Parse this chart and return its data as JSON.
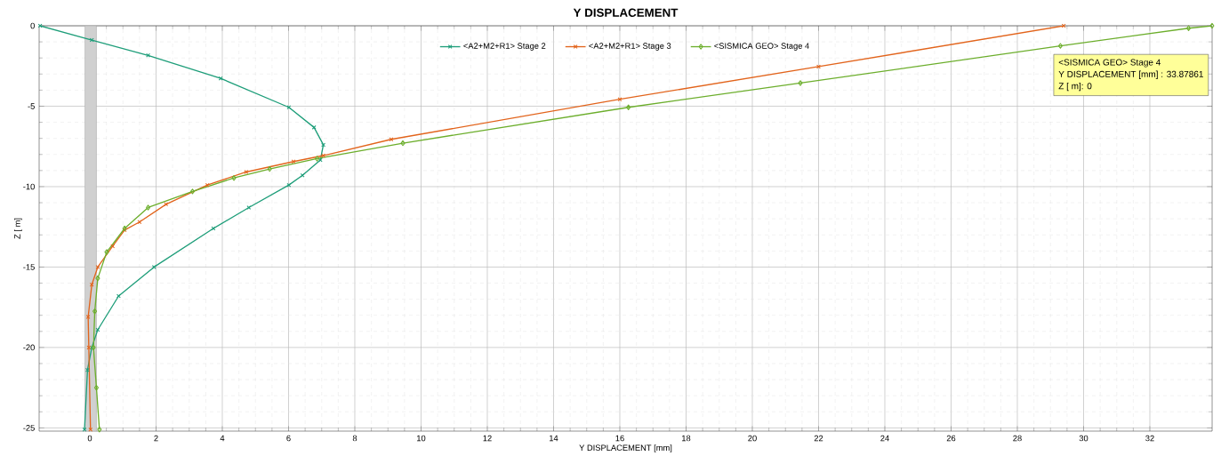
{
  "chart_data": {
    "type": "line",
    "title": "Y DISPLACEMENT",
    "xlabel": "Y DISPLACEMENT [mm]",
    "ylabel": "Z [ m]",
    "xlim": [
      -1.53,
      33.88
    ],
    "ylim": [
      -25.2,
      0
    ],
    "xticks": [
      0,
      2,
      4,
      6,
      8,
      10,
      12,
      14,
      16,
      18,
      20,
      22,
      24,
      26,
      28,
      30,
      32
    ],
    "yticks": [
      -25,
      -20,
      -15,
      -10,
      -5,
      0
    ],
    "grid": true,
    "legend": "top",
    "line_style": "solid",
    "bands": [
      {
        "axis": "x",
        "from": -0.15,
        "to": 0.2,
        "color": "#d0d0d0"
      }
    ],
    "annotations": [
      "<SISMICA GEO> Stage 4",
      "Y DISPLACEMENT [mm] : 33.87861",
      "Z [ m]: 0"
    ],
    "series": [
      {
        "name": "<A2+M2+R1> Stage 2",
        "color": "#1f9e7a",
        "marker": "cross",
        "x": [
          -1.5,
          0.06,
          1.76,
          3.95,
          6.01,
          6.77,
          7.05,
          6.96,
          6.42,
          6.01,
          4.8,
          3.73,
          1.94,
          0.87,
          0.24,
          0.06,
          -0.07,
          -0.16
        ],
        "values": [
          0,
          -0.89,
          -1.84,
          -3.27,
          -5.07,
          -6.32,
          -7.4,
          -8.35,
          -9.3,
          -9.9,
          -11.3,
          -12.6,
          -15,
          -16.8,
          -18.9,
          -20,
          -21.4,
          -25.1
        ]
      },
      {
        "name": "<A2+M2+R1> Stage 3",
        "color": "#e2641c",
        "marker": "cross",
        "x": [
          29.4,
          22,
          16,
          9.1,
          7.05,
          6.15,
          4.72,
          3.55,
          2.3,
          1.5,
          1.05,
          0.69,
          0.24,
          0.06,
          -0.05,
          -0.03,
          0.02
        ],
        "values": [
          0,
          -2.54,
          -4.57,
          -7.06,
          -8.07,
          -8.44,
          -9.09,
          -9.9,
          -11.1,
          -12.2,
          -12.7,
          -13.7,
          -15,
          -16.1,
          -18.1,
          -20,
          -25.1
        ]
      },
      {
        "name": "<SISMICA GEO> Stage 4",
        "color": "#6cae2c",
        "marker": "diamond",
        "x": [
          33.87861,
          33.17,
          29.3,
          21.45,
          16.26,
          9.45,
          6.86,
          5.43,
          4.35,
          3.1,
          1.76,
          1.05,
          0.51,
          0.24,
          0.15,
          0.11,
          0.2,
          0.29
        ],
        "values": [
          0,
          -0.15,
          -1.25,
          -3.56,
          -5.07,
          -7.3,
          -8.26,
          -8.9,
          -9.46,
          -10.3,
          -11.3,
          -12.6,
          -14.07,
          -15.7,
          -17.75,
          -20,
          -22.5,
          -25.1
        ]
      }
    ]
  }
}
